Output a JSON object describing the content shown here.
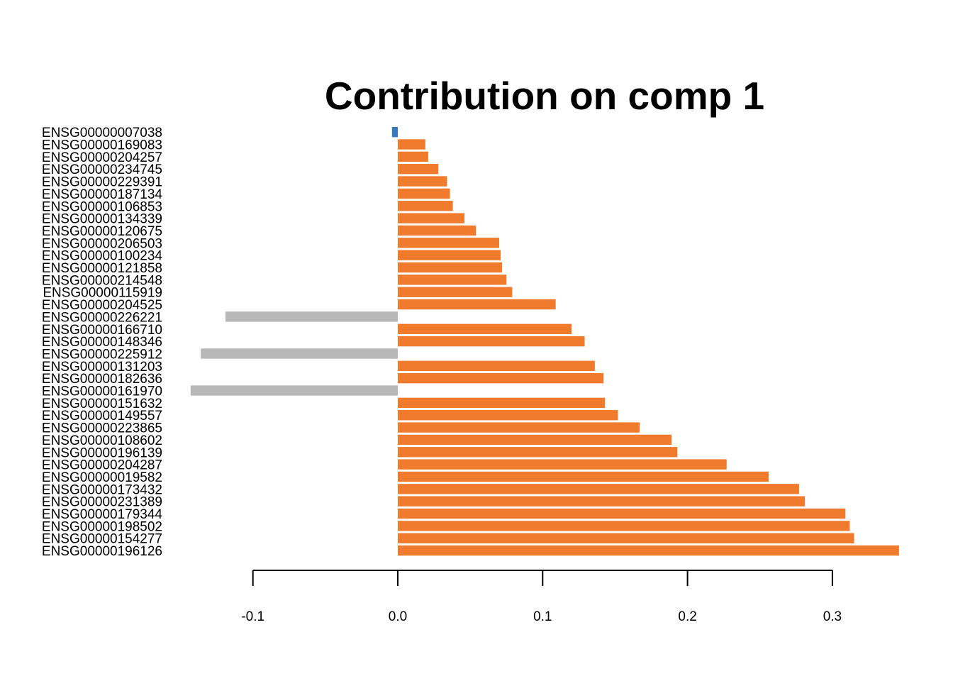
{
  "chart_data": {
    "type": "bar",
    "orientation": "horizontal",
    "title": "Contribution on comp 1",
    "xlabel": "",
    "ylabel": "",
    "xlim": [
      -0.1,
      0.3
    ],
    "xticks": [
      -0.1,
      0.0,
      0.1,
      0.2,
      0.3
    ],
    "xtick_labels": [
      "-0.1",
      "0.0",
      "0.1",
      "0.2",
      "0.3"
    ],
    "grid": false,
    "colors": {
      "orange": "#F07B2C",
      "blue": "#3878C0",
      "gray": "#B8B8B8"
    },
    "bars": [
      {
        "label": "ENSG00000007038",
        "value": -0.004,
        "color": "blue"
      },
      {
        "label": "ENSG00000169083",
        "value": 0.019,
        "color": "orange"
      },
      {
        "label": "ENSG00000204257",
        "value": 0.021,
        "color": "orange"
      },
      {
        "label": "ENSG00000234745",
        "value": 0.028,
        "color": "orange"
      },
      {
        "label": "ENSG00000229391",
        "value": 0.034,
        "color": "orange"
      },
      {
        "label": "ENSG00000187134",
        "value": 0.036,
        "color": "orange"
      },
      {
        "label": "ENSG00000106853",
        "value": 0.038,
        "color": "orange"
      },
      {
        "label": "ENSG00000134339",
        "value": 0.046,
        "color": "orange"
      },
      {
        "label": "ENSG00000120675",
        "value": 0.054,
        "color": "orange"
      },
      {
        "label": "ENSG00000206503",
        "value": 0.07,
        "color": "orange"
      },
      {
        "label": "ENSG00000100234",
        "value": 0.071,
        "color": "orange"
      },
      {
        "label": "ENSG00000121858",
        "value": 0.072,
        "color": "orange"
      },
      {
        "label": "ENSG00000214548",
        "value": 0.075,
        "color": "orange"
      },
      {
        "label": "ENSG00000115919",
        "value": 0.079,
        "color": "orange"
      },
      {
        "label": "ENSG00000204525",
        "value": 0.109,
        "color": "orange"
      },
      {
        "label": "ENSG00000226221",
        "value": -0.119,
        "color": "gray"
      },
      {
        "label": "ENSG00000166710",
        "value": 0.12,
        "color": "orange"
      },
      {
        "label": "ENSG00000148346",
        "value": 0.129,
        "color": "orange"
      },
      {
        "label": "ENSG00000225912",
        "value": -0.136,
        "color": "gray"
      },
      {
        "label": "ENSG00000131203",
        "value": 0.136,
        "color": "orange"
      },
      {
        "label": "ENSG00000182636",
        "value": 0.142,
        "color": "orange"
      },
      {
        "label": "ENSG00000161970",
        "value": -0.143,
        "color": "gray"
      },
      {
        "label": "ENSG00000151632",
        "value": 0.143,
        "color": "orange"
      },
      {
        "label": "ENSG00000149557",
        "value": 0.152,
        "color": "orange"
      },
      {
        "label": "ENSG00000223865",
        "value": 0.167,
        "color": "orange"
      },
      {
        "label": "ENSG00000108602",
        "value": 0.189,
        "color": "orange"
      },
      {
        "label": "ENSG00000196139",
        "value": 0.193,
        "color": "orange"
      },
      {
        "label": "ENSG00000204287",
        "value": 0.227,
        "color": "orange"
      },
      {
        "label": "ENSG00000019582",
        "value": 0.256,
        "color": "orange"
      },
      {
        "label": "ENSG00000173432",
        "value": 0.277,
        "color": "orange"
      },
      {
        "label": "ENSG00000231389",
        "value": 0.281,
        "color": "orange"
      },
      {
        "label": "ENSG00000179344",
        "value": 0.309,
        "color": "orange"
      },
      {
        "label": "ENSG00000198502",
        "value": 0.312,
        "color": "orange"
      },
      {
        "label": "ENSG00000154277",
        "value": 0.315,
        "color": "orange"
      },
      {
        "label": "ENSG00000196126",
        "value": 0.346,
        "color": "orange"
      }
    ]
  }
}
